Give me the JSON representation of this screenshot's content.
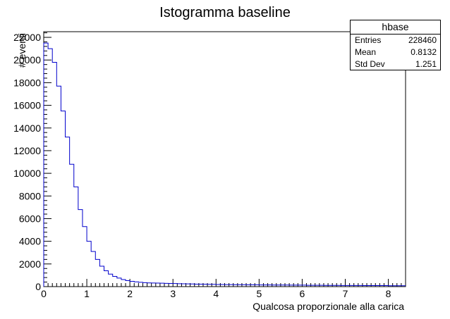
{
  "chart_data": {
    "type": "histogram",
    "title": "Istogramma baseline",
    "xlabel": "Qualcosa proporzionale alla carica",
    "ylabel": "# eventi",
    "xlim": [
      0,
      8.4
    ],
    "ylim": [
      0,
      22500
    ],
    "x_ticks": [
      "0",
      "1",
      "2",
      "3",
      "4",
      "5",
      "6",
      "7",
      "8"
    ],
    "y_ticks": [
      "0",
      "2000",
      "4000",
      "6000",
      "8000",
      "10000",
      "12000",
      "14000",
      "16000",
      "18000",
      "20000",
      "22000"
    ],
    "bin_width": 0.1,
    "values": [
      21500,
      21000,
      19800,
      17700,
      15500,
      13200,
      10800,
      8800,
      6800,
      5300,
      4000,
      3100,
      2400,
      1800,
      1400,
      1100,
      900,
      750,
      620,
      530,
      470,
      420,
      380,
      350,
      330,
      320,
      310,
      300,
      290,
      280,
      270,
      260,
      250,
      240,
      230,
      220,
      220,
      210,
      200,
      200,
      190,
      190,
      180,
      180,
      170,
      170,
      170,
      160,
      160,
      160,
      150,
      150,
      150,
      140,
      140,
      140,
      140,
      130,
      130,
      130,
      130,
      120,
      120,
      120,
      120,
      110,
      110,
      110,
      110,
      100,
      100,
      100,
      100,
      100,
      90,
      90,
      90,
      90,
      90,
      90,
      80,
      80,
      80,
      80
    ],
    "line_color": "#0000cc",
    "grid": false,
    "stats": {
      "name": "hbase",
      "entries_label": "Entries",
      "entries": "228460",
      "mean_label": "Mean",
      "mean": "0.8132",
      "stddev_label": "Std Dev",
      "stddev": "1.251"
    }
  }
}
